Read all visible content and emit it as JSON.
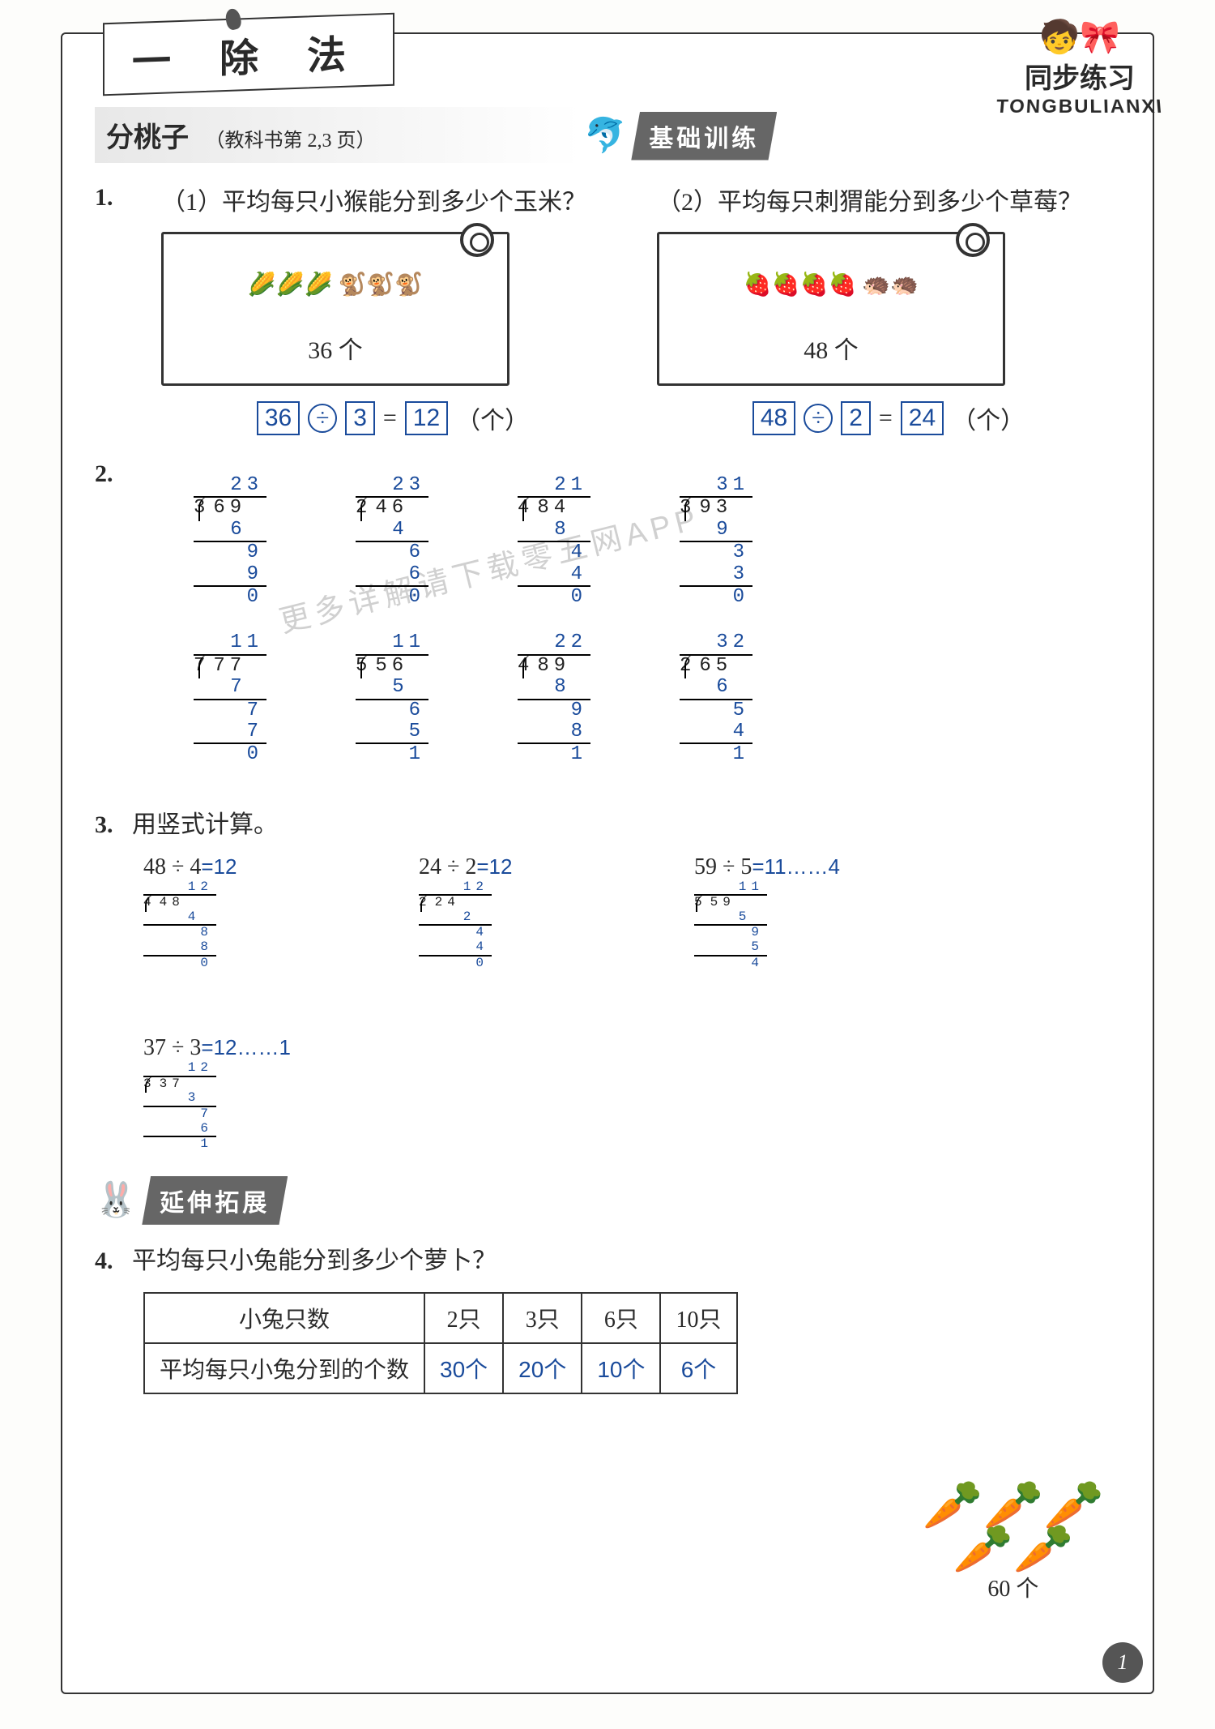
{
  "chapter_title": "一 除 法",
  "brand": {
    "chinese": "同步练习",
    "pinyin": "TONGBULIANXI"
  },
  "section": {
    "main": "分桃子",
    "sub": "（教科书第 2,3 页）"
  },
  "ribbons": {
    "basic": "基础训练",
    "extend": "延伸拓展"
  },
  "q1": {
    "num": "1.",
    "a": {
      "label": "（1）平均每只小猴能分到多少个玉米？",
      "count": "36 个",
      "illus": "🌽🌽🌽  🐒🐒🐒",
      "eq": {
        "a": "36",
        "op": "÷",
        "b": "3",
        "eq": "=",
        "r": "12",
        "unit": "（个）"
      }
    },
    "b": {
      "label": "（2）平均每只刺猬能分到多少个草莓？",
      "count": "48 个",
      "illus": "🍓🍓🍓🍓  🦔🦔",
      "eq": {
        "a": "48",
        "op": "÷",
        "b": "2",
        "eq": "=",
        "r": "24",
        "unit": "（个）"
      }
    }
  },
  "q2": {
    "num": "2.",
    "row1": [
      {
        "divisor": "3",
        "dividend": "69",
        "quot": "23",
        "steps": [
          "6",
          "9",
          "9",
          "0"
        ]
      },
      {
        "divisor": "2",
        "dividend": "46",
        "quot": "23",
        "steps": [
          "4",
          "6",
          "6",
          "0"
        ]
      },
      {
        "divisor": "4",
        "dividend": "84",
        "quot": "21",
        "steps": [
          "8",
          "4",
          "4",
          "0"
        ]
      },
      {
        "divisor": "3",
        "dividend": "93",
        "quot": "31",
        "steps": [
          "9",
          "3",
          "3",
          "0"
        ]
      }
    ],
    "row2": [
      {
        "divisor": "7",
        "dividend": "77",
        "quot": "11",
        "steps": [
          "7",
          "7",
          "7",
          "0"
        ]
      },
      {
        "divisor": "5",
        "dividend": "56",
        "quot": "11",
        "steps": [
          "5",
          "6",
          "5",
          "1"
        ]
      },
      {
        "divisor": "4",
        "dividend": "89",
        "quot": "22",
        "steps": [
          "8",
          "9",
          "8",
          "1"
        ]
      },
      {
        "divisor": "2",
        "dividend": "65",
        "quot": "32",
        "steps": [
          "6",
          "5",
          "4",
          "1"
        ]
      }
    ]
  },
  "q3": {
    "num": "3.",
    "title": "用竖式计算。",
    "items": [
      {
        "expr": "48 ÷ 4",
        "ans": "=12",
        "divisor": "4",
        "dividend": "48",
        "quot": "12",
        "steps": [
          "4",
          "8",
          "8",
          "0"
        ]
      },
      {
        "expr": "24 ÷ 2",
        "ans": "=12",
        "divisor": "2",
        "dividend": "24",
        "quot": "12",
        "steps": [
          "2",
          "4",
          "4",
          "0"
        ]
      },
      {
        "expr": "59 ÷ 5",
        "ans": "=11……4",
        "divisor": "5",
        "dividend": "59",
        "quot": "11",
        "steps": [
          "5",
          "9",
          "5",
          "4"
        ]
      },
      {
        "expr": "37 ÷ 3",
        "ans": "=12……1",
        "divisor": "3",
        "dividend": "37",
        "quot": "12",
        "steps": [
          "3",
          "7",
          "6",
          "1"
        ]
      }
    ]
  },
  "q4": {
    "num": "4.",
    "title": "平均每只小兔能分到多少个萝卜？",
    "head": "小兔只数",
    "row1": [
      "2只",
      "3只",
      "6只",
      "10只"
    ],
    "row2_label": "平均每只小兔分到的个数",
    "row2": [
      "30个",
      "20个",
      "10个",
      "6个"
    ],
    "carrot_count": "60 个"
  },
  "watermark": "更多详解请下载零五网APP",
  "page_number": "1",
  "colors": {
    "answer": "#1a4b9b",
    "text": "#2a2a2a",
    "ribbon_bg": "#666666"
  }
}
